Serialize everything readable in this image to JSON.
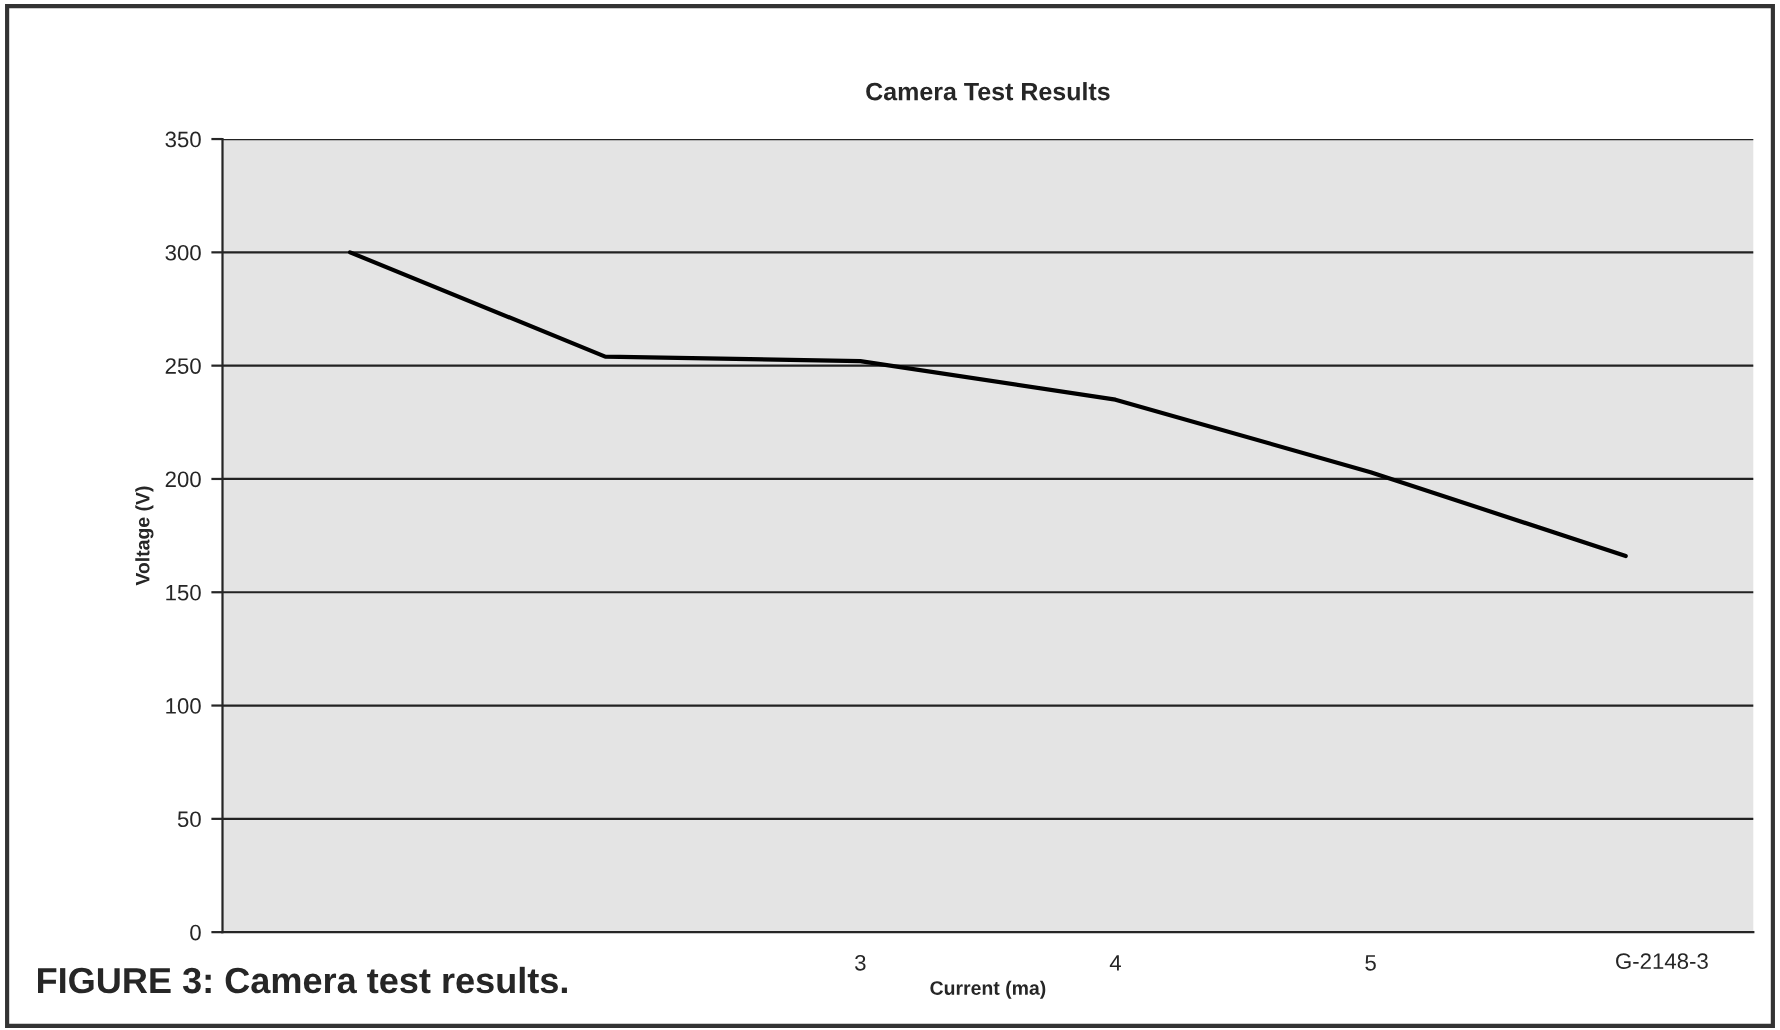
{
  "chart_data": {
    "type": "line",
    "title": "Camera Test Results",
    "xlabel": "Current (ma)",
    "ylabel": "Voltage (V)",
    "categories": [
      null,
      null,
      "3",
      "4",
      "5",
      null
    ],
    "series": [
      {
        "color": "#000000",
        "values": [
          300,
          254,
          252,
          235,
          203,
          166
        ]
      }
    ],
    "ylim": [
      0,
      350
    ],
    "yticks": [
      0,
      50,
      100,
      150,
      200,
      250,
      300,
      350
    ],
    "grid": "y",
    "marker": "none",
    "line_style": "solid",
    "legend": false,
    "annotations": [
      "FIGURE 3: Camera test results.",
      "G-2148-3"
    ]
  }
}
